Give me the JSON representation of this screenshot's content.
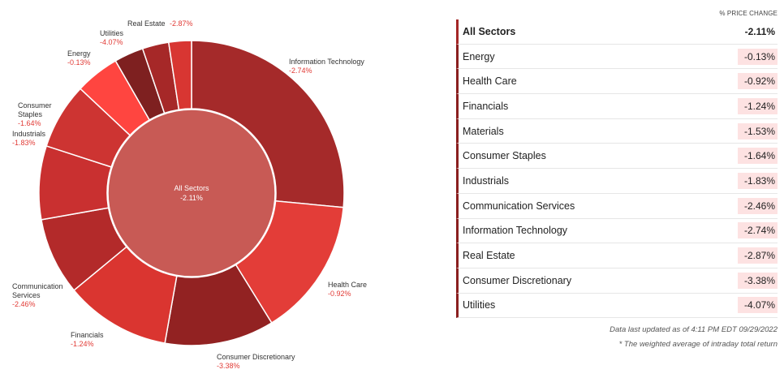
{
  "chart_data": {
    "type": "pie",
    "center": {
      "label": "All Sectors",
      "value": "-2.11%"
    },
    "slices": [
      {
        "name": "Information Technology",
        "value": "-2.74%",
        "weight": 26.5,
        "color": "#a52a2a"
      },
      {
        "name": "Health Care",
        "value": "-0.92%",
        "weight": 14.7,
        "color": "#e33d38"
      },
      {
        "name": "Consumer Discretionary",
        "value": "-3.38%",
        "weight": 11.6,
        "color": "#922222"
      },
      {
        "name": "Financials",
        "value": "-1.24%",
        "weight": 11.2,
        "color": "#da3530"
      },
      {
        "name": "Communication Services",
        "value": "-2.46%",
        "weight": 8.2,
        "color": "#b32a2a"
      },
      {
        "name": "Industrials",
        "value": "-1.83%",
        "weight": 7.8,
        "color": "#c93030"
      },
      {
        "name": "Consumer Staples",
        "value": "-1.64%",
        "weight": 7.0,
        "color": "#cd3432"
      },
      {
        "name": "Energy",
        "value": "-0.13%",
        "weight": 4.7,
        "color": "#ff4540"
      },
      {
        "name": "Utilities",
        "value": "-4.07%",
        "weight": 3.1,
        "color": "#7e2020"
      },
      {
        "name": "Real Estate",
        "value": "-2.87%",
        "weight": 2.8,
        "color": "#a62828"
      },
      {
        "name": "",
        "value": "",
        "weight": 2.4,
        "color": "#d83632"
      }
    ]
  },
  "table": {
    "header": "% PRICE CHANGE",
    "rows": [
      {
        "name": "All Sectors",
        "value": "-2.11%"
      },
      {
        "name": "Energy",
        "value": "-0.13%"
      },
      {
        "name": "Health Care",
        "value": "-0.92%"
      },
      {
        "name": "Financials",
        "value": "-1.24%"
      },
      {
        "name": "Materials",
        "value": "-1.53%"
      },
      {
        "name": "Consumer Staples",
        "value": "-1.64%"
      },
      {
        "name": "Industrials",
        "value": "-1.83%"
      },
      {
        "name": "Communication Services",
        "value": "-2.46%"
      },
      {
        "name": "Information Technology",
        "value": "-2.74%"
      },
      {
        "name": "Real Estate",
        "value": "-2.87%"
      },
      {
        "name": "Consumer Discretionary",
        "value": "-3.38%"
      },
      {
        "name": "Utilities",
        "value": "-4.07%"
      }
    ]
  },
  "notes": {
    "updated": "Data last updated as of 4:11 PM EDT 09/29/2022",
    "footnote": "* The weighted average of intraday total return"
  }
}
